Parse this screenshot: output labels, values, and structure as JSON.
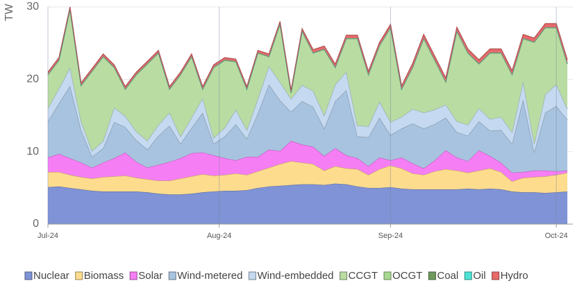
{
  "chart_data": {
    "type": "stacked-area",
    "y_label": "TW",
    "x": [
      0,
      2,
      4,
      6,
      8,
      10,
      12,
      14,
      16,
      18,
      20,
      22,
      24,
      26,
      28,
      30,
      32,
      34,
      36,
      38,
      40,
      42,
      44,
      46,
      48,
      50,
      52,
      54,
      56,
      58,
      60,
      62,
      64,
      66,
      68,
      70,
      72,
      74,
      76,
      78,
      80,
      82,
      84,
      86,
      88,
      90,
      92,
      94
    ],
    "xlim": [
      0,
      95
    ],
    "xticks": [
      {
        "value": 0,
        "label": "Jul-24"
      },
      {
        "value": 31,
        "label": "Aug-24"
      },
      {
        "value": 62,
        "label": "Sep-24"
      },
      {
        "value": 92,
        "label": "Oct-24"
      }
    ],
    "ylim": [
      0,
      30
    ],
    "yticks": [
      0,
      10,
      20,
      30
    ],
    "grid": true,
    "series": [
      {
        "name": "Nuclear",
        "color": "#7f93d6",
        "values": [
          5.1,
          5.2,
          5.0,
          4.8,
          4.6,
          4.5,
          4.5,
          4.5,
          4.5,
          4.4,
          4.2,
          4.1,
          4.1,
          4.2,
          4.4,
          4.5,
          4.6,
          4.6,
          4.7,
          5.0,
          5.2,
          5.3,
          5.4,
          5.5,
          5.5,
          5.4,
          5.6,
          5.5,
          5.2,
          5.0,
          5.0,
          5.1,
          4.9,
          4.8,
          4.8,
          4.8,
          4.8,
          4.8,
          4.9,
          4.8,
          4.9,
          4.8,
          4.5,
          4.4,
          4.4,
          4.3,
          4.4,
          4.5
        ]
      },
      {
        "name": "Biomass",
        "color": "#fddc8e",
        "values": [
          2.1,
          2.0,
          1.8,
          1.7,
          1.7,
          2.0,
          2.1,
          2.2,
          1.9,
          1.8,
          1.8,
          1.9,
          2.2,
          2.4,
          2.5,
          2.2,
          2.2,
          2.4,
          2.1,
          2.3,
          2.6,
          3.0,
          3.3,
          3.0,
          2.8,
          2.0,
          2.4,
          2.2,
          2.4,
          1.8,
          2.6,
          3.0,
          2.8,
          2.2,
          2.0,
          2.5,
          2.8,
          2.6,
          2.2,
          2.6,
          2.8,
          2.4,
          1.4,
          2.0,
          2.1,
          2.3,
          2.4,
          2.6
        ]
      },
      {
        "name": "Solar",
        "color": "#f67ef4",
        "values": [
          2.0,
          2.5,
          2.3,
          2.0,
          1.5,
          2.0,
          2.5,
          3.2,
          2.2,
          1.6,
          2.2,
          2.6,
          2.8,
          3.2,
          3.0,
          2.8,
          2.3,
          1.8,
          2.5,
          2.0,
          2.5,
          1.8,
          2.8,
          2.5,
          2.4,
          2.0,
          2.5,
          1.8,
          1.5,
          1.2,
          1.6,
          0.7,
          1.5,
          1.4,
          0.9,
          1.5,
          2.6,
          1.8,
          1.6,
          2.8,
          1.7,
          1.3,
          1.2,
          0.8,
          0.9,
          0.8,
          0.5,
          0.3
        ]
      },
      {
        "name": "Wind-metered",
        "color": "#a8c3df",
        "values": [
          5.0,
          7.0,
          10.0,
          4.5,
          1.5,
          2.0,
          5.0,
          3.5,
          3.0,
          2.5,
          4.0,
          5.0,
          2.0,
          3.5,
          5.5,
          1.6,
          3.0,
          5.0,
          2.5,
          6.0,
          9.0,
          7.0,
          4.0,
          6.0,
          5.5,
          3.8,
          6.5,
          9.0,
          3.0,
          4.0,
          5.5,
          3.5,
          4.0,
          5.5,
          5.5,
          5.0,
          4.5,
          3.5,
          3.5,
          4.0,
          3.5,
          4.5,
          4.0,
          10.0,
          2.5,
          8.0,
          9.0,
          7.0
        ]
      },
      {
        "name": "Wind-embedded",
        "color": "#c5daf0",
        "values": [
          1.8,
          2.0,
          2.5,
          1.2,
          0.8,
          1.0,
          2.0,
          1.5,
          1.2,
          1.2,
          1.5,
          1.8,
          1.0,
          1.4,
          2.0,
          0.8,
          1.2,
          2.0,
          1.2,
          2.0,
          2.5,
          2.5,
          1.8,
          2.2,
          2.2,
          1.8,
          2.3,
          2.5,
          1.5,
          1.5,
          2.2,
          1.8,
          1.6,
          2.0,
          2.2,
          2.0,
          1.8,
          1.5,
          1.5,
          1.8,
          1.6,
          1.8,
          1.6,
          2.5,
          1.2,
          2.5,
          3.0,
          1.5
        ]
      },
      {
        "name": "CCGT",
        "color": "#b9dca2",
        "values": [
          4.6,
          3.9,
          8.0,
          4.9,
          11.0,
          11.6,
          5.5,
          3.7,
          7.8,
          10.6,
          9.9,
          3.2,
          8.5,
          8.4,
          1.2,
          9.7,
          9.3,
          6.6,
          5.6,
          6.3,
          1.3,
          8.0,
          0.8,
          7.4,
          5.2,
          9.1,
          2.3,
          4.6,
          12.0,
          7.1,
          7.7,
          13.0,
          3.8,
          5.7,
          10.2,
          6.8,
          3.1,
          12.4,
          9.9,
          6.1,
          9.1,
          8.8,
          7.9,
          5.9,
          14.0,
          9.2,
          7.8,
          6.2
        ]
      },
      {
        "name": "OCGT",
        "color": "#a8d890",
        "values": [
          0.05,
          0.05,
          0.05,
          0.05,
          0.05,
          0.05,
          0.05,
          0.05,
          0.05,
          0.05,
          0.05,
          0.05,
          0.05,
          0.05,
          0.05,
          0.05,
          0.05,
          0.05,
          0.05,
          0.05,
          0.05,
          0.05,
          0.05,
          0.05,
          0.05,
          0.05,
          0.05,
          0.05,
          0.05,
          0.05,
          0.05,
          0.05,
          0.05,
          0.05,
          0.05,
          0.05,
          0.05,
          0.05,
          0.05,
          0.05,
          0.05,
          0.05,
          0.05,
          0.05,
          0.05,
          0.05,
          0.05,
          0.05
        ]
      },
      {
        "name": "Coal",
        "color": "#6f9a60",
        "values": [
          0.05,
          0.05,
          0.05,
          0.05,
          0.05,
          0.05,
          0.05,
          0.05,
          0.05,
          0.05,
          0.05,
          0.05,
          0.05,
          0.05,
          0.05,
          0.05,
          0.05,
          0.05,
          0.05,
          0.05,
          0.05,
          0.05,
          0.05,
          0.05,
          0.05,
          0.05,
          0.05,
          0.05,
          0.05,
          0.05,
          0.05,
          0.05,
          0.05,
          0.05,
          0.05,
          0.05,
          0.05,
          0.05,
          0.05,
          0.05,
          0.05,
          0.05,
          0.05,
          0.05,
          0.05,
          0.05,
          0.05,
          0.05
        ]
      },
      {
        "name": "Oil",
        "color": "#4fe3d6",
        "values": [
          0,
          0,
          0,
          0,
          0,
          0,
          0,
          0,
          0,
          0,
          0,
          0,
          0,
          0,
          0,
          0,
          0,
          0,
          0,
          0,
          0,
          0,
          0,
          0,
          0,
          0,
          0,
          0,
          0,
          0,
          0,
          0,
          0,
          0,
          0,
          0,
          0,
          0,
          0,
          0,
          0,
          0,
          0,
          0,
          0,
          0,
          0,
          0
        ]
      },
      {
        "name": "Hydro",
        "color": "#e86a6a",
        "values": [
          0.3,
          0.3,
          0.3,
          0.3,
          0.3,
          0.3,
          0.3,
          0.3,
          0.3,
          0.3,
          0.3,
          0.3,
          0.3,
          0.3,
          0.3,
          0.3,
          0.3,
          0.3,
          0.3,
          0.3,
          0.3,
          0.3,
          0.3,
          0.3,
          0.4,
          0.4,
          0.4,
          0.4,
          0.4,
          0.4,
          0.4,
          0.4,
          0.4,
          0.5,
          0.5,
          0.5,
          0.5,
          0.5,
          0.5,
          0.5,
          0.5,
          0.5,
          0.5,
          0.5,
          0.5,
          0.5,
          0.5,
          0.5
        ]
      }
    ]
  }
}
